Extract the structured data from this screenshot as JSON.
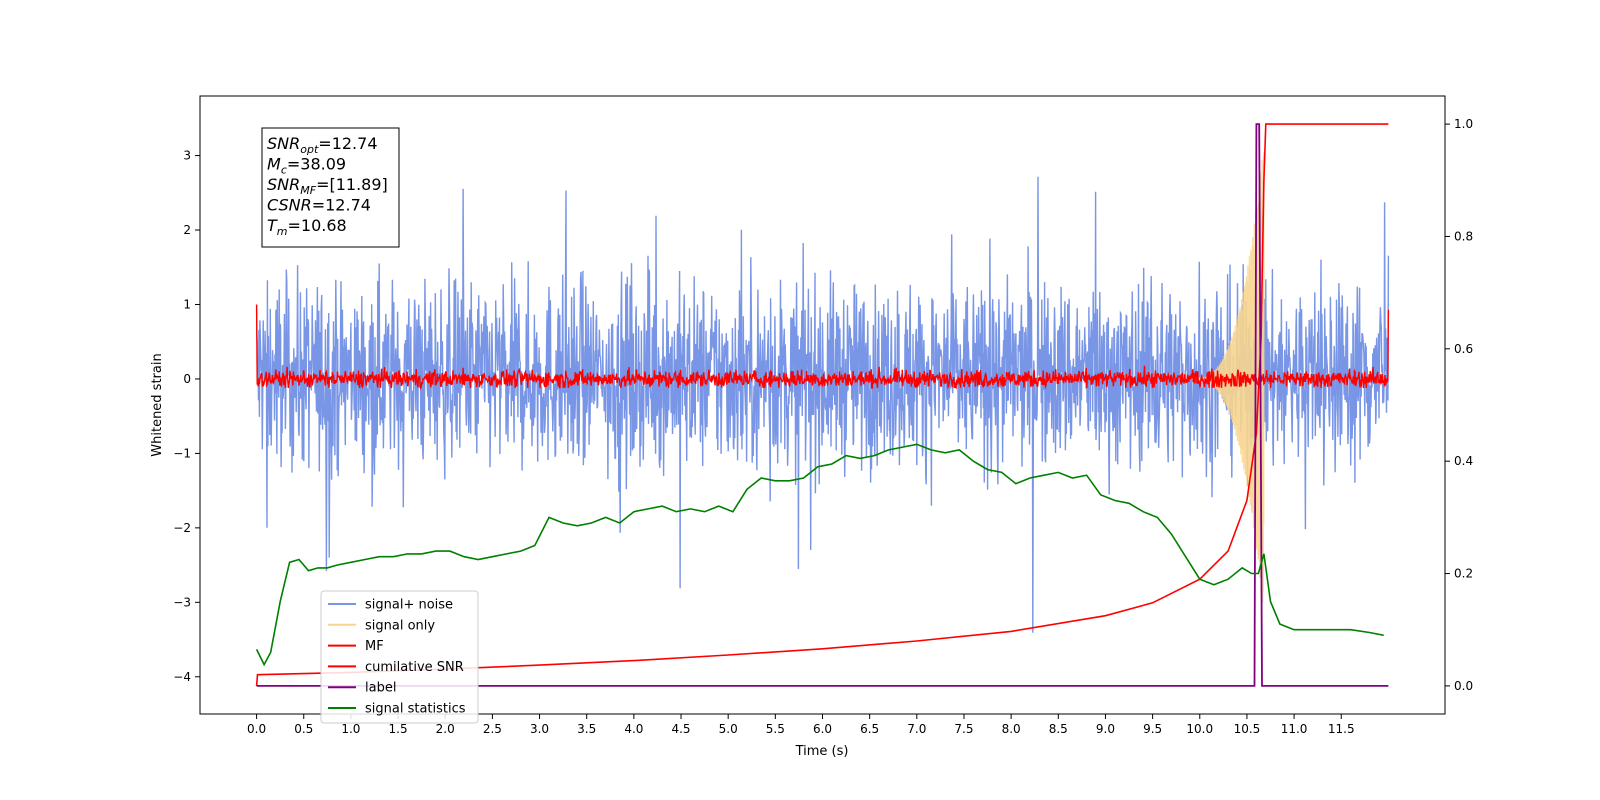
{
  "chart_data": {
    "type": "line",
    "xlabel": "Time (s)",
    "ylabel": "Whitened strain",
    "xlim": [
      -0.6,
      12.6
    ],
    "ylim": [
      -4.5,
      3.8
    ],
    "y2lim": [
      -0.05,
      1.05
    ],
    "x_ticks": [
      "0.0",
      "0.5",
      "1.0",
      "1.5",
      "2.0",
      "2.5",
      "3.0",
      "3.5",
      "4.0",
      "4.5",
      "5.0",
      "5.5",
      "6.0",
      "6.5",
      "7.0",
      "7.5",
      "8.0",
      "8.5",
      "9.0",
      "9.5",
      "10.0",
      "10.5",
      "11.0",
      "11.5"
    ],
    "y_ticks": [
      "3",
      "2",
      "1",
      "0",
      "−1",
      "−2",
      "−3",
      "−4"
    ],
    "y2_ticks": [
      "1.0",
      "0.8",
      "0.6",
      "0.4",
      "0.2",
      "0.0"
    ],
    "grid": false,
    "legend_position": "lower-left",
    "annotation": {
      "lines": [
        {
          "main": "SNR",
          "sub": "opt",
          "rest": "=12.74"
        },
        {
          "main": "M",
          "sub": "c",
          "rest": "=38.09"
        },
        {
          "main": "SNR",
          "sub": "MF",
          "rest": "=[11.89]"
        },
        {
          "main": "CSNR",
          "sub": "",
          "rest": "=12.74"
        },
        {
          "main": "T",
          "sub": "m",
          "rest": "=10.68"
        }
      ]
    },
    "series": [
      {
        "name": "signal+ noise",
        "color": "#7895e6",
        "axis": "left",
        "description_values": {
          "x_start": 0.0,
          "x_end": 12.0,
          "typical_range": [
            -2.0,
            2.3
          ],
          "extreme_range": [
            -3.95,
            3.45
          ]
        }
      },
      {
        "name": "signal only",
        "color": "#f7d58e",
        "axis": "left",
        "chirp": {
          "x_start": 9.9,
          "peak_time": 10.68,
          "peak_amplitude": 3.2
        }
      },
      {
        "name": "MF",
        "color": "#ff0000",
        "axis": "left",
        "description_values": {
          "x_start": 0.0,
          "x_end": 12.0,
          "typical_range": [
            -0.12,
            0.15
          ],
          "start_value": 1.0,
          "end_value": 0.93
        }
      },
      {
        "name": "cumilative SNR",
        "color": "#ff0000",
        "axis": "right",
        "x": [
          0.0,
          0.01,
          1.0,
          2.0,
          3.0,
          4.0,
          5.0,
          6.0,
          7.0,
          8.0,
          9.0,
          9.5,
          10.0,
          10.3,
          10.5,
          10.6,
          10.65,
          10.68,
          10.7,
          12.0
        ],
        "values": [
          0.0,
          0.02,
          0.024,
          0.03,
          0.037,
          0.045,
          0.055,
          0.066,
          0.08,
          0.097,
          0.125,
          0.148,
          0.19,
          0.24,
          0.33,
          0.45,
          0.62,
          0.9,
          1.0,
          1.0
        ]
      },
      {
        "name": "label",
        "color": "#800080",
        "axis": "right",
        "x": [
          0.0,
          10.58,
          10.6,
          10.63,
          10.66,
          12.0
        ],
        "values": [
          0.0,
          0.0,
          1.0,
          1.0,
          0.0,
          0.0
        ]
      },
      {
        "name": "signal statistics",
        "color": "#008000",
        "axis": "right",
        "x": [
          0.0,
          0.08,
          0.15,
          0.25,
          0.35,
          0.45,
          0.55,
          0.65,
          0.75,
          0.85,
          1.0,
          1.15,
          1.3,
          1.45,
          1.6,
          1.75,
          1.9,
          2.05,
          2.2,
          2.35,
          2.5,
          2.65,
          2.8,
          2.95,
          3.1,
          3.25,
          3.4,
          3.55,
          3.7,
          3.85,
          4.0,
          4.15,
          4.3,
          4.45,
          4.6,
          4.75,
          4.9,
          5.05,
          5.2,
          5.35,
          5.5,
          5.65,
          5.8,
          5.95,
          6.1,
          6.25,
          6.4,
          6.55,
          6.7,
          6.85,
          7.0,
          7.15,
          7.3,
          7.45,
          7.6,
          7.75,
          7.9,
          8.05,
          8.2,
          8.35,
          8.5,
          8.65,
          8.8,
          8.95,
          9.1,
          9.25,
          9.4,
          9.55,
          9.7,
          9.85,
          10.0,
          10.15,
          10.3,
          10.45,
          10.55,
          10.62,
          10.68,
          10.75,
          10.85,
          11.0,
          11.2,
          11.4,
          11.6,
          11.8,
          11.95
        ],
        "values": [
          0.065,
          0.038,
          0.06,
          0.15,
          0.22,
          0.225,
          0.205,
          0.21,
          0.21,
          0.215,
          0.22,
          0.225,
          0.23,
          0.23,
          0.235,
          0.235,
          0.24,
          0.24,
          0.23,
          0.225,
          0.23,
          0.235,
          0.24,
          0.25,
          0.3,
          0.29,
          0.285,
          0.29,
          0.3,
          0.29,
          0.31,
          0.315,
          0.32,
          0.31,
          0.315,
          0.31,
          0.32,
          0.31,
          0.35,
          0.37,
          0.365,
          0.365,
          0.37,
          0.39,
          0.395,
          0.41,
          0.405,
          0.41,
          0.42,
          0.425,
          0.43,
          0.42,
          0.415,
          0.42,
          0.4,
          0.385,
          0.38,
          0.36,
          0.37,
          0.375,
          0.38,
          0.37,
          0.375,
          0.34,
          0.33,
          0.325,
          0.31,
          0.3,
          0.27,
          0.23,
          0.19,
          0.18,
          0.19,
          0.21,
          0.2,
          0.2,
          0.235,
          0.15,
          0.11,
          0.1,
          0.1,
          0.1,
          0.1,
          0.095,
          0.09
        ]
      }
    ]
  }
}
